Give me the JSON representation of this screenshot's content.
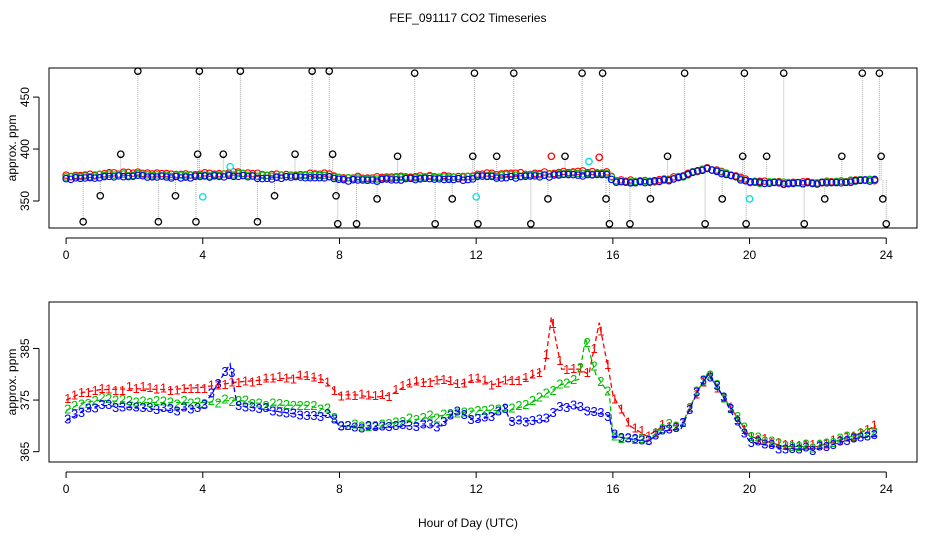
{
  "figure": {
    "title": "FEF_091117  CO2 Timeseries",
    "xlabel": "Hour of Day (UTC)"
  },
  "colors": {
    "black": "#000000",
    "red": "#ff0000",
    "green": "#00c000",
    "blue": "#0000ff",
    "cyan": "#00e0e0",
    "connector": "#aaaaaa"
  },
  "chart_data": [
    {
      "type": "scatter",
      "ylabel": "approx. ppm",
      "xlim": [
        -0.5,
        24.9
      ],
      "ylim": [
        324,
        478
      ],
      "xticks": [
        0,
        4,
        8,
        12,
        16,
        20,
        24
      ],
      "yticks": [
        350,
        400,
        450
      ],
      "baseline": [
        [
          0,
          372
        ],
        [
          1,
          374
        ],
        [
          2,
          375
        ],
        [
          3,
          374
        ],
        [
          4,
          374
        ],
        [
          5,
          375
        ],
        [
          6,
          373
        ],
        [
          7,
          374
        ],
        [
          7.7,
          374
        ],
        [
          8,
          371
        ],
        [
          9,
          371
        ],
        [
          10,
          372
        ],
        [
          11,
          372
        ],
        [
          11.9,
          372
        ],
        [
          12,
          374
        ],
        [
          13,
          374
        ],
        [
          14,
          375
        ],
        [
          15,
          376
        ],
        [
          15.9,
          376
        ],
        [
          16,
          369
        ],
        [
          17,
          368
        ],
        [
          17.5,
          370
        ],
        [
          18,
          373
        ],
        [
          18.5,
          379
        ],
        [
          18.8,
          381
        ],
        [
          19.2,
          377
        ],
        [
          19.8,
          371
        ],
        [
          20,
          368
        ],
        [
          21,
          367
        ],
        [
          22,
          367
        ],
        [
          23,
          369
        ],
        [
          23.7,
          370
        ]
      ],
      "spike_points": [
        [
          0.5,
          330
        ],
        [
          1,
          355
        ],
        [
          1.6,
          395
        ],
        [
          2.1,
          475
        ],
        [
          2.7,
          330
        ],
        [
          3.2,
          355
        ],
        [
          3.8,
          330
        ],
        [
          3.85,
          395
        ],
        [
          3.9,
          475
        ],
        [
          4.6,
          395
        ],
        [
          5.1,
          475
        ],
        [
          5.6,
          330
        ],
        [
          6.1,
          355
        ],
        [
          6.7,
          395
        ],
        [
          7.2,
          475
        ],
        [
          7.7,
          475
        ],
        [
          7.8,
          395
        ],
        [
          7.9,
          355
        ],
        [
          7.95,
          328
        ],
        [
          8.5,
          328
        ],
        [
          9.1,
          352
        ],
        [
          9.7,
          393
        ],
        [
          10.2,
          473
        ],
        [
          10.8,
          328
        ],
        [
          11.3,
          352
        ],
        [
          11.9,
          393
        ],
        [
          11.95,
          473
        ],
        [
          12.05,
          328
        ],
        [
          12.6,
          393
        ],
        [
          13.1,
          473
        ],
        [
          13.6,
          328
        ],
        [
          14.1,
          352
        ],
        [
          14.6,
          393
        ],
        [
          15.1,
          473
        ],
        [
          15.7,
          473
        ],
        [
          15.8,
          352
        ],
        [
          15.9,
          328
        ],
        [
          16.5,
          328
        ],
        [
          17.1,
          352
        ],
        [
          17.6,
          393
        ],
        [
          18.1,
          473
        ],
        [
          18.7,
          328
        ],
        [
          19.2,
          352
        ],
        [
          19.8,
          393
        ],
        [
          19.85,
          473
        ],
        [
          19.9,
          328
        ],
        [
          20.5,
          393
        ],
        [
          21.0,
          473
        ],
        [
          21.6,
          328
        ],
        [
          22.2,
          352
        ],
        [
          22.7,
          393
        ],
        [
          23.3,
          473
        ],
        [
          23.8,
          473
        ],
        [
          23.85,
          393
        ],
        [
          23.9,
          352
        ],
        [
          24.0,
          328
        ]
      ],
      "cyan_points": [
        [
          4.0,
          354
        ],
        [
          4.8,
          383
        ],
        [
          12.0,
          354
        ],
        [
          15.3,
          388
        ],
        [
          20.0,
          352
        ]
      ],
      "red_outliers": [
        [
          14.2,
          393
        ],
        [
          15.6,
          392
        ]
      ]
    },
    {
      "type": "line",
      "ylabel": "approx. ppm",
      "xlim": [
        -0.5,
        24.9
      ],
      "ylim": [
        363,
        394
      ],
      "xticks": [
        0,
        4,
        8,
        12,
        16,
        20,
        24
      ],
      "yticks": [
        365,
        375,
        385
      ],
      "series_labels": [
        "1",
        "2",
        "3"
      ],
      "series": [
        {
          "label": "1",
          "points": [
            [
              0,
              375
            ],
            [
              0.5,
              376.5
            ],
            [
              1,
              377
            ],
            [
              2,
              377.2
            ],
            [
              3,
              377
            ],
            [
              4,
              377.5
            ],
            [
              4.5,
              378
            ],
            [
              5,
              378.5
            ],
            [
              6,
              379
            ],
            [
              7,
              379.5
            ],
            [
              7.5,
              379
            ],
            [
              8,
              376
            ],
            [
              8.5,
              376
            ],
            [
              9,
              375.5
            ],
            [
              9.5,
              376
            ],
            [
              10,
              378
            ],
            [
              11,
              379
            ],
            [
              11.5,
              378
            ],
            [
              12,
              379
            ],
            [
              12.5,
              378
            ],
            [
              13,
              379
            ],
            [
              13.5,
              379
            ],
            [
              14,
              381
            ],
            [
              14.2,
              391
            ],
            [
              14.5,
              381
            ],
            [
              15,
              381
            ],
            [
              15.3,
              380
            ],
            [
              15.6,
              390
            ],
            [
              15.9,
              380
            ],
            [
              16,
              376
            ],
            [
              16.5,
              370
            ],
            [
              17,
              368
            ],
            [
              17.5,
              370
            ],
            [
              18,
              370
            ],
            [
              18.5,
              377
            ],
            [
              18.8,
              380
            ],
            [
              19.2,
              376
            ],
            [
              19.6,
              372
            ],
            [
              20,
              368
            ],
            [
              21,
              366
            ],
            [
              22,
              366
            ],
            [
              23,
              368
            ],
            [
              23.7,
              370
            ]
          ]
        },
        {
          "label": "2",
          "points": [
            [
              0,
              373
            ],
            [
              0.5,
              374.5
            ],
            [
              1,
              375
            ],
            [
              2,
              374.5
            ],
            [
              3,
              374.5
            ],
            [
              4,
              374.5
            ],
            [
              5,
              375
            ],
            [
              6,
              374
            ],
            [
              7,
              374
            ],
            [
              7.7,
              373
            ],
            [
              8,
              370
            ],
            [
              9,
              370
            ],
            [
              10,
              371
            ],
            [
              11,
              372
            ],
            [
              12,
              373
            ],
            [
              12.5,
              373
            ],
            [
              13,
              373
            ],
            [
              13.5,
              374
            ],
            [
              14,
              376
            ],
            [
              14.5,
              378
            ],
            [
              15,
              379
            ],
            [
              15.2,
              387
            ],
            [
              15.5,
              380
            ],
            [
              15.9,
              376
            ],
            [
              16,
              368
            ],
            [
              17,
              367
            ],
            [
              17.5,
              370
            ],
            [
              18,
              370
            ],
            [
              18.5,
              377
            ],
            [
              18.8,
              380.5
            ],
            [
              19.2,
              376
            ],
            [
              19.6,
              372
            ],
            [
              20,
              368
            ],
            [
              21,
              366
            ],
            [
              22,
              366
            ],
            [
              23,
              368
            ],
            [
              23.7,
              369
            ]
          ]
        },
        {
          "label": "3",
          "points": [
            [
              0,
              371
            ],
            [
              0.3,
              372
            ],
            [
              0.5,
              373
            ],
            [
              1,
              374
            ],
            [
              2,
              373.5
            ],
            [
              3,
              373
            ],
            [
              4,
              373.5
            ],
            [
              4.8,
              382
            ],
            [
              5,
              374
            ],
            [
              6,
              373
            ],
            [
              7,
              372
            ],
            [
              7.7,
              372
            ],
            [
              8,
              370
            ],
            [
              9,
              369.5
            ],
            [
              10,
              370
            ],
            [
              11,
              370
            ],
            [
              11.4,
              373
            ],
            [
              12,
              371
            ],
            [
              12.5,
              372
            ],
            [
              12.8,
              374
            ],
            [
              13,
              371
            ],
            [
              14,
              371
            ],
            [
              14.5,
              374
            ],
            [
              15,
              373.5
            ],
            [
              15.5,
              372.5
            ],
            [
              15.9,
              372
            ],
            [
              16,
              368
            ],
            [
              17,
              367
            ],
            [
              17.5,
              369
            ],
            [
              18,
              369.5
            ],
            [
              18.5,
              377
            ],
            [
              18.8,
              380
            ],
            [
              19.2,
              376
            ],
            [
              19.6,
              371
            ],
            [
              20,
              367
            ],
            [
              21,
              365.5
            ],
            [
              22,
              365.5
            ],
            [
              23,
              367.5
            ],
            [
              23.7,
              368
            ]
          ]
        }
      ]
    }
  ]
}
